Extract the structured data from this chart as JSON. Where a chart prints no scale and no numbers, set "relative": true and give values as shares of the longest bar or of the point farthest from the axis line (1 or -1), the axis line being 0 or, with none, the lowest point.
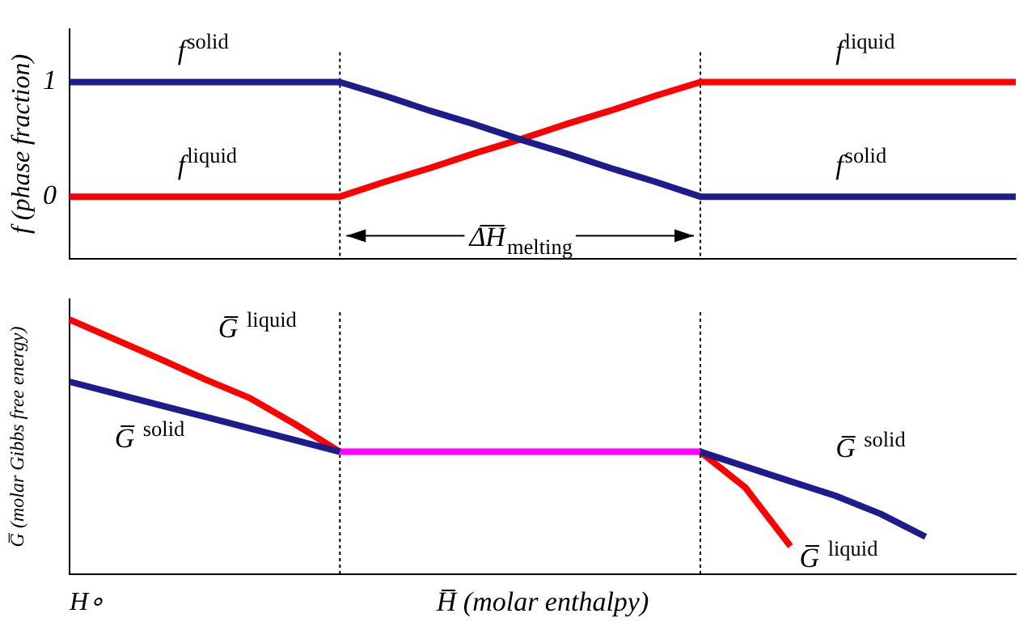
{
  "chart_data": [
    {
      "type": "line",
      "ylabel": "f (phase fraction)",
      "categories": [
        null,
        null,
        null,
        null,
        null,
        null,
        null,
        null,
        null,
        null,
        null,
        null,
        null,
        null,
        null,
        null,
        null,
        null,
        null,
        null,
        null,
        null
      ],
      "ylim": [
        -0.54,
        1.46
      ],
      "yticks": [
        0,
        1
      ],
      "tick_labels": "y",
      "marker": "none",
      "line_style": "solid",
      "series": [
        {
          "name": "f$^{solid}$",
          "color": "#1c1c8c",
          "values": [
            1,
            1,
            1,
            1,
            1,
            1,
            1,
            0.88,
            0.75,
            0.63,
            0.5,
            0.38,
            0.25,
            0.13,
            0,
            0,
            0,
            0,
            0,
            0,
            0,
            0
          ]
        },
        {
          "name": "f$^{liquid}$",
          "color": "#ff0000",
          "values": [
            0,
            0,
            0,
            0,
            0,
            0,
            0,
            0.13,
            0.25,
            0.38,
            0.5,
            0.63,
            0.75,
            0.88,
            1,
            1,
            1,
            1,
            1,
            1,
            1,
            1
          ]
        }
      ],
      "annotations": [
        "Δ̅H̅$_{melting}$"
      ]
    },
    {
      "type": "line",
      "relative": true,
      "ylabel": "G̅ (molar Gibbs free energy)",
      "xlabel": "H̅ (molar enthalpy)",
      "categories": [
        null,
        null,
        null,
        null,
        null,
        null,
        null,
        null,
        null,
        null,
        null,
        null,
        null,
        null,
        null,
        null,
        null,
        null,
        null,
        null,
        null,
        null
      ],
      "tick_labels": false,
      "marker": "none",
      "line_style": "solid",
      "series": [
        {
          "name": "G̅ $^{solid}$",
          "color": "#1c1c8c",
          "values": [
            0.756,
            0.71,
            0.664,
            0.619,
            0.573,
            0.527,
            0.481,
            null,
            null,
            null,
            null,
            null,
            null,
            null,
            0.481,
            0.423,
            0.365,
            0.308,
            0.237,
            0.147,
            null,
            null
          ]
        },
        {
          "name": "G̅ $^{liquid}$",
          "color": "#ff0000",
          "values": [
            1,
            0.923,
            0.846,
            0.766,
            0.692,
            0.59,
            0.481,
            null,
            null,
            null,
            null,
            null,
            null,
            null,
            0.481,
            0.34,
            0.11,
            null,
            null,
            null,
            null,
            null
          ]
        },
        {
          "color": "#ff00ff",
          "values": [
            null,
            null,
            null,
            null,
            null,
            null,
            0.481,
            0.481,
            0.481,
            0.481,
            0.481,
            0.481,
            0.481,
            0.481,
            0.481,
            null,
            null,
            null,
            null,
            null,
            null,
            null
          ]
        }
      ],
      "annotations": [
        "H∘"
      ]
    }
  ]
}
